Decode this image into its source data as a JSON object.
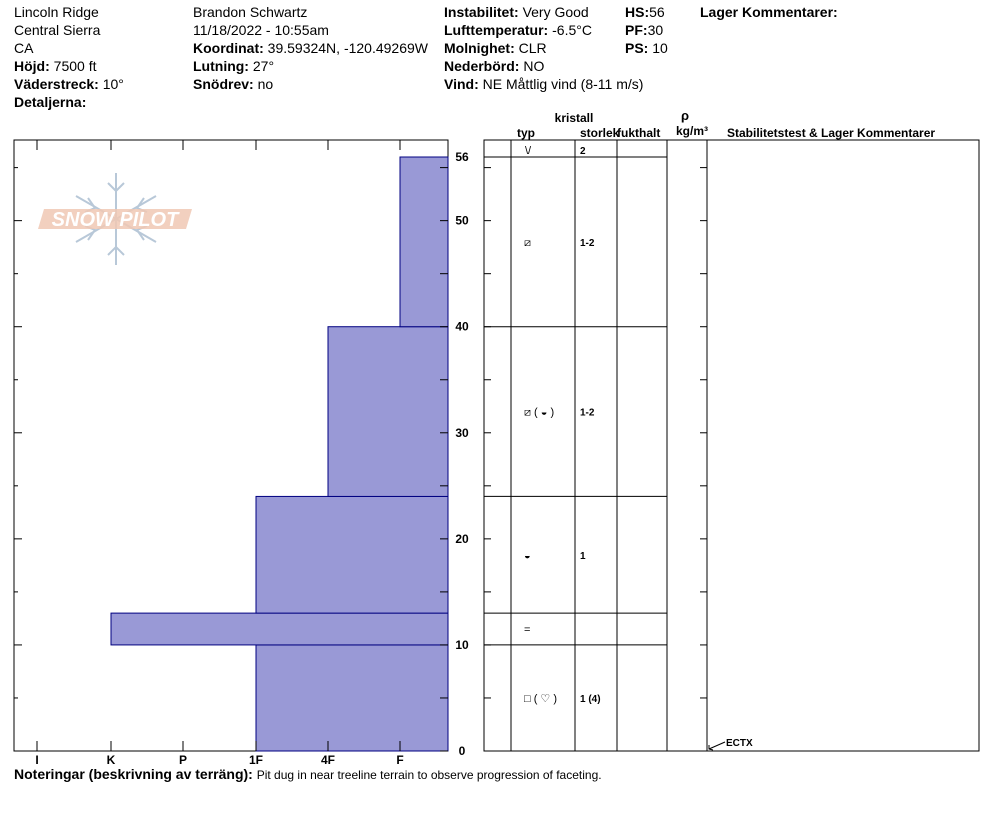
{
  "header": {
    "location": "Lincoln Ridge",
    "range": "Central Sierra",
    "state": "CA",
    "elevation_label": "Höjd:",
    "elevation_value": "7500 ft",
    "aspect_label": "Väderstreck:",
    "aspect_value": "10°",
    "details_label": "Detaljerna:",
    "observer": "Brandon Schwartz",
    "datetime": "11/18/2022 - 10:55am",
    "coord_label": "Koordinat:",
    "coord_value": "39.59324N, -120.49269W",
    "slope_label": "Lutning:",
    "slope_value": "27°",
    "drift_label": "Snödrev:",
    "drift_value": "no",
    "instability_label": "Instabilitet:",
    "instability_value": "Very Good",
    "airtemp_label": "Lufttemperatur:",
    "airtemp_value": "-6.5°C",
    "cloud_label": "Molnighet:",
    "cloud_value": "CLR",
    "precip_label": "Nederbörd:",
    "precip_value": "NO",
    "wind_label": "Vind:",
    "wind_value": "NE Måttlig vind (8-11 m/s)",
    "hs_label": "HS:",
    "hs_value": "56",
    "pf_label": "PF:",
    "pf_value": "30",
    "ps_label": "PS:",
    "ps_value": "10",
    "layer_comments_label": "Lager Kommentarer:"
  },
  "logo_text": "SNOW PILOT",
  "columns": {
    "crystal": "kristall",
    "type": "typ",
    "size": "storlek",
    "moisture": "fukthalt",
    "rho": "ρ",
    "density_unit": "kg/m³",
    "stability": "Stabilitetstest & Lager Kommentarer"
  },
  "chart_data": {
    "type": "bar",
    "orientation": "horizontal-profile",
    "x_categories": [
      "I",
      "K",
      "P",
      "1F",
      "4F",
      "F"
    ],
    "x_scale_hint": "hardness decreases to the right (F = fist, softest)",
    "ylim": [
      0,
      56
    ],
    "y_ticks": [
      0,
      10,
      20,
      30,
      40,
      50,
      56
    ],
    "y_unit": "cm",
    "bar_color": "#9999d6",
    "layers": [
      {
        "bottom": 0,
        "top": 10,
        "hardness": "1F"
      },
      {
        "bottom": 10,
        "top": 13,
        "hardness": "K"
      },
      {
        "bottom": 13,
        "top": 24,
        "hardness": "1F"
      },
      {
        "bottom": 24,
        "top": 40,
        "hardness": "4F"
      },
      {
        "bottom": 40,
        "top": 56,
        "hardness": "F"
      }
    ]
  },
  "surface_row": {
    "type_symbol": "\\/",
    "size": "2"
  },
  "crystal_rows": [
    {
      "bottom": 40,
      "top": 56,
      "type_symbols": "⧄",
      "size": "1-2"
    },
    {
      "bottom": 24,
      "top": 40,
      "type_symbols": "⧄ ( ◒ )",
      "size": "1-2"
    },
    {
      "bottom": 13,
      "top": 24,
      "type_symbols": "◒",
      "size": "1"
    },
    {
      "bottom": 10,
      "top": 13,
      "type_symbols": "=",
      "size": ""
    },
    {
      "bottom": 0,
      "top": 10,
      "type_symbols": "□ ( ♡ )",
      "size": "1 (4)"
    }
  ],
  "tests": [
    {
      "label": "ECTX",
      "depth": 0
    }
  ],
  "notes": {
    "label": "Noteringar (beskrivning av terräng):",
    "text": "Pit dug in near treeline terrain to observe progression of faceting."
  }
}
